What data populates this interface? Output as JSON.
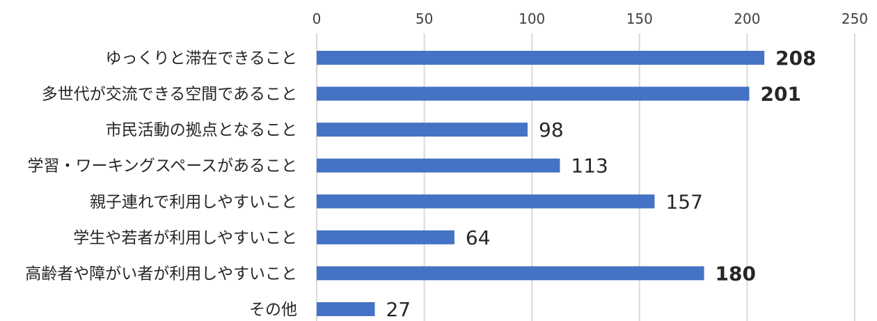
{
  "chart_data": {
    "type": "bar",
    "orientation": "horizontal",
    "title": "",
    "xlabel": "",
    "ylabel": "",
    "xlim": [
      0,
      250
    ],
    "x_ticks": [
      0,
      50,
      100,
      150,
      200,
      250
    ],
    "x_axis_position": "top",
    "grid": true,
    "legend": "none",
    "bar_color": "#4472C4",
    "categories": [
      "ゆっくりと滞在できること",
      "多世代が交流できる空間であること",
      "市民活動の拠点となること",
      "学習・ワーキングスペースがあること",
      "親子連れで利用しやすいこと",
      "学生や若者が利用しやすいこと",
      "高齢者や障がい者が利用しやすいこと",
      "その他"
    ],
    "values": [
      208,
      201,
      98,
      113,
      157,
      64,
      180,
      27
    ],
    "bold_labels": [
      true,
      true,
      false,
      false,
      false,
      false,
      true,
      false
    ]
  }
}
